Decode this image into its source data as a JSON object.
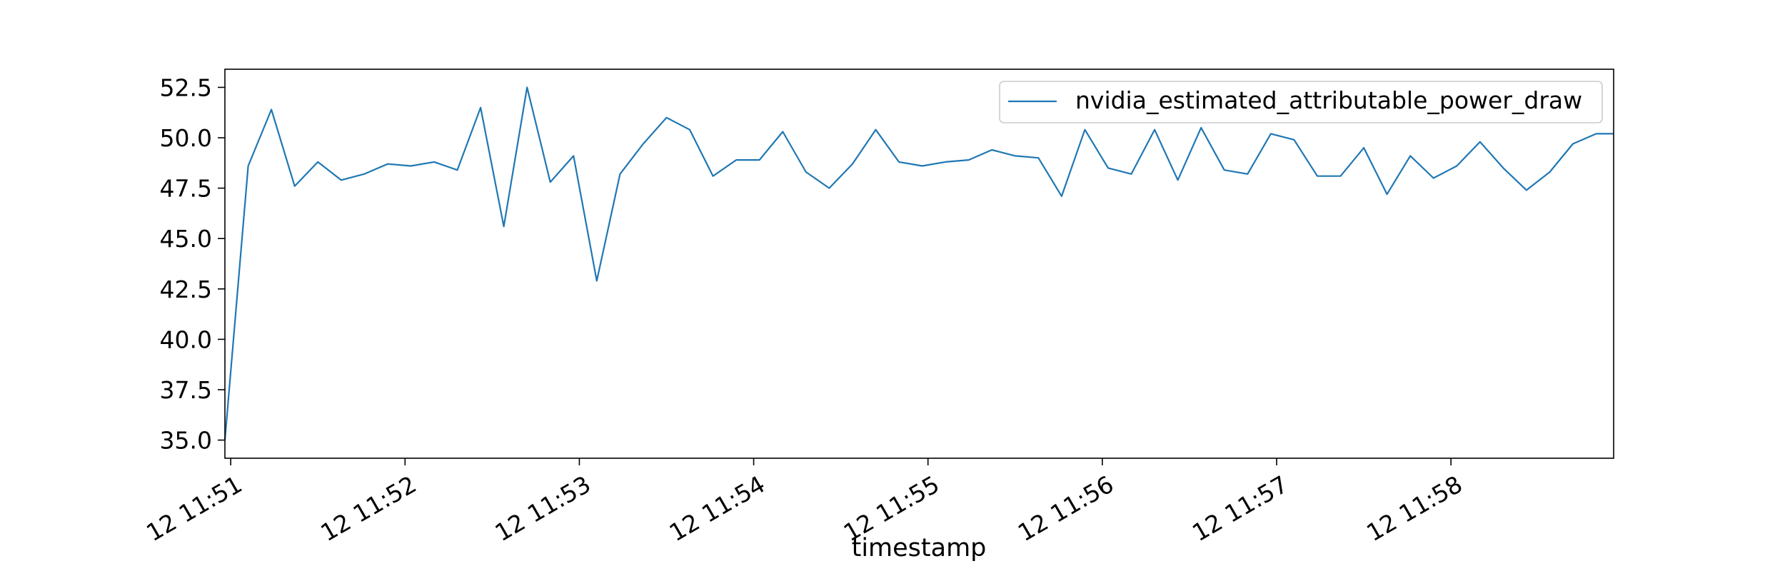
{
  "chart_data": {
    "type": "line",
    "title": "",
    "xlabel": "timestamp",
    "ylabel": "",
    "x_format": "DD HH:MM",
    "x_ticks": [
      "12 11:51",
      "12 11:52",
      "12 11:53",
      "12 11:54",
      "12 11:55",
      "12 11:56",
      "12 11:57",
      "12 11:58"
    ],
    "xlim": [
      "12 11:50:58",
      "12 11:58:56"
    ],
    "y_ticks": [
      "35.0",
      "37.5",
      "40.0",
      "42.5",
      "45.0",
      "47.5",
      "50.0",
      "52.5"
    ],
    "ylim": [
      34.1,
      53.4
    ],
    "grid": false,
    "legend": {
      "placement": "top-right"
    },
    "series": [
      {
        "name": "nvidia_estimated_attributable_power_draw",
        "color": "#1f77b4",
        "x": [
          "12 11:50:58",
          "12 11:51:06",
          "12 11:51:14",
          "12 11:51:22",
          "12 11:51:30",
          "12 11:51:38",
          "12 11:51:46",
          "12 11:51:54",
          "12 11:52:02",
          "12 11:52:10",
          "12 11:52:18",
          "12 11:52:26",
          "12 11:52:34",
          "12 11:52:42",
          "12 11:52:50",
          "12 11:52:58",
          "12 11:53:06",
          "12 11:53:14",
          "12 11:53:22",
          "12 11:53:30",
          "12 11:53:38",
          "12 11:53:46",
          "12 11:53:54",
          "12 11:54:02",
          "12 11:54:10",
          "12 11:54:18",
          "12 11:54:26",
          "12 11:54:34",
          "12 11:54:42",
          "12 11:54:50",
          "12 11:54:58",
          "12 11:55:06",
          "12 11:55:14",
          "12 11:55:22",
          "12 11:55:30",
          "12 11:55:38",
          "12 11:55:46",
          "12 11:55:54",
          "12 11:56:02",
          "12 11:56:10",
          "12 11:56:18",
          "12 11:56:26",
          "12 11:56:34",
          "12 11:56:42",
          "12 11:56:50",
          "12 11:56:58",
          "12 11:57:06",
          "12 11:57:14",
          "12 11:57:22",
          "12 11:57:30",
          "12 11:57:38",
          "12 11:57:46",
          "12 11:57:54",
          "12 11:58:02",
          "12 11:58:10",
          "12 11:58:18",
          "12 11:58:26",
          "12 11:58:34",
          "12 11:58:42",
          "12 11:58:50",
          "12 11:58:56"
        ],
        "y": [
          35.0,
          48.6,
          51.4,
          47.6,
          48.8,
          47.9,
          48.2,
          48.7,
          48.6,
          48.8,
          48.4,
          51.5,
          45.6,
          52.5,
          47.8,
          49.1,
          42.9,
          48.2,
          49.7,
          51.0,
          50.4,
          48.1,
          48.9,
          48.9,
          50.3,
          48.3,
          47.5,
          48.7,
          50.4,
          48.8,
          48.6,
          48.8,
          48.9,
          49.4,
          49.1,
          49.0,
          47.1,
          50.4,
          48.5,
          48.2,
          50.4,
          47.9,
          50.5,
          48.4,
          48.2,
          50.2,
          49.9,
          48.1,
          48.1,
          49.5,
          47.2,
          49.1,
          48.0,
          48.6,
          49.8,
          48.5,
          47.4,
          48.3,
          49.7,
          50.2,
          50.2
        ]
      }
    ]
  }
}
